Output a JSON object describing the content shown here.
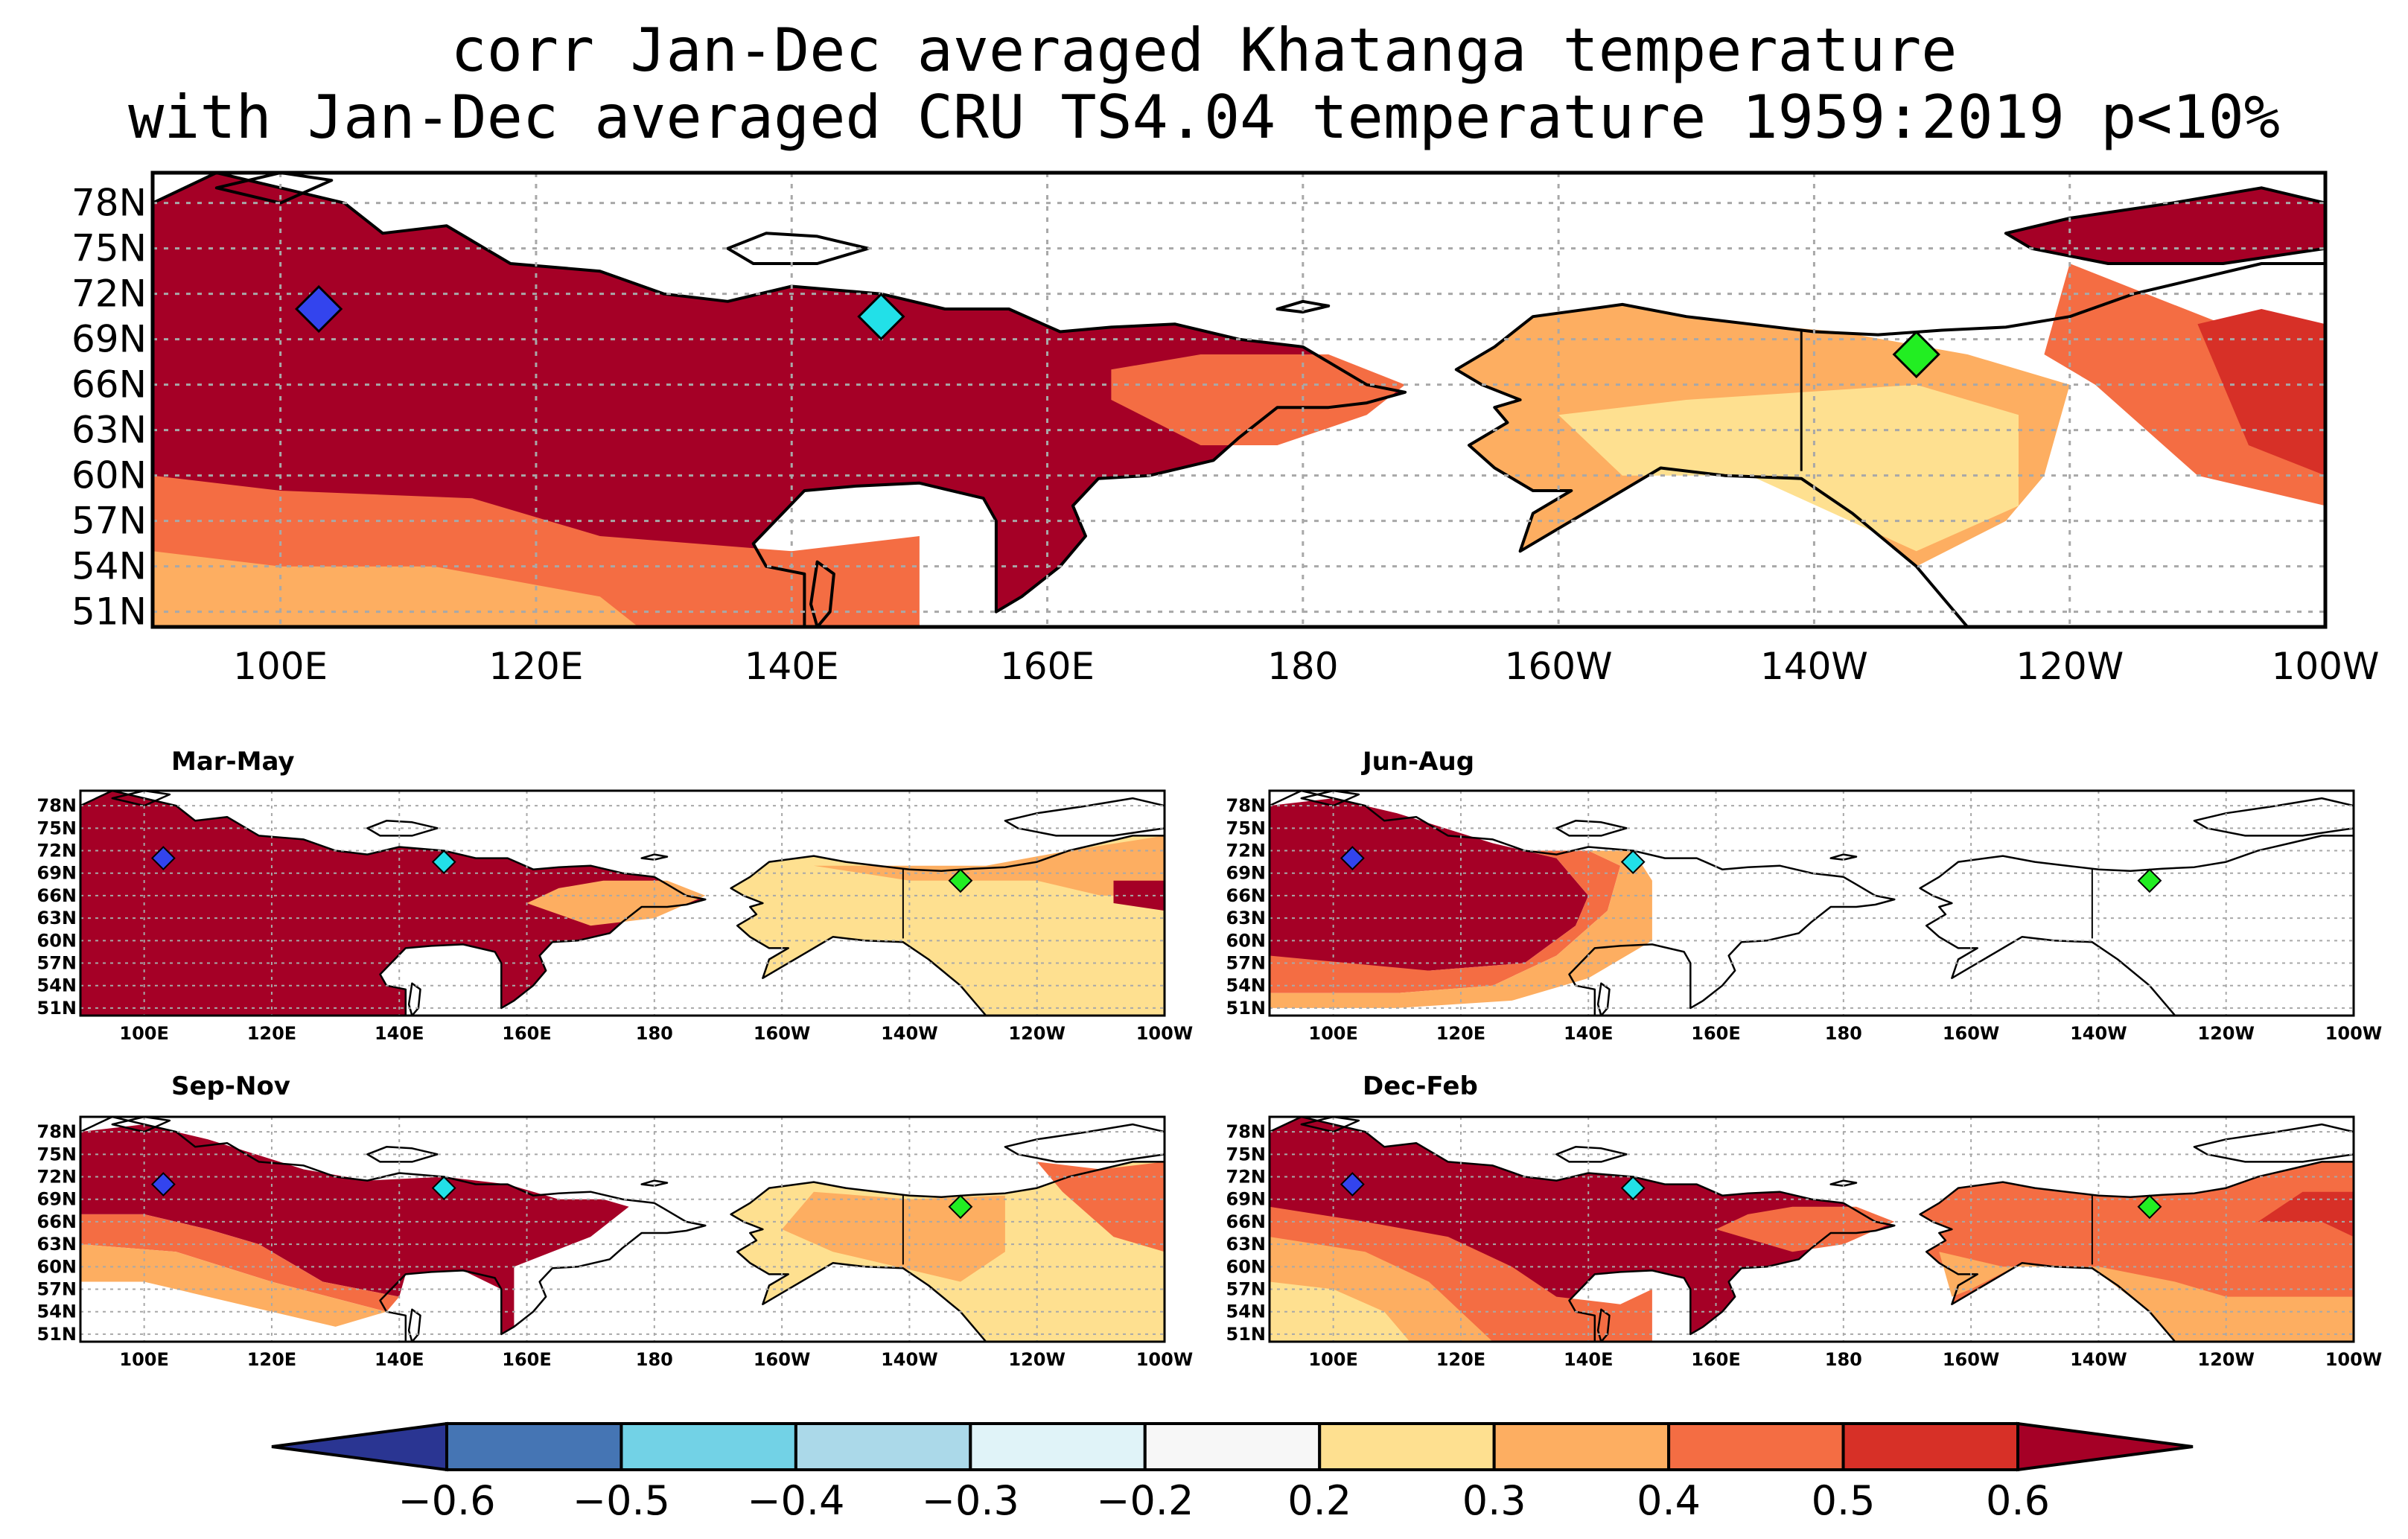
{
  "title": {
    "line1": "corr Jan-Dec averaged Khatanga temperature",
    "line2": "with Jan-Dec averaged CRU TS4.04 temperature 1959:2019 p<10%"
  },
  "axes": {
    "lat_labels": [
      "78N",
      "75N",
      "72N",
      "69N",
      "66N",
      "63N",
      "60N",
      "57N",
      "54N",
      "51N"
    ],
    "lon_labels": [
      "100E",
      "120E",
      "140E",
      "160E",
      "180",
      "160W",
      "140W",
      "120W",
      "100W"
    ]
  },
  "panels": {
    "main": {
      "name": "Jan-Dec"
    },
    "mam": {
      "title": "Mar-May"
    },
    "jja": {
      "title": "Jun-Aug"
    },
    "son": {
      "title": "Sep-Nov"
    },
    "djf": {
      "title": "Dec-Feb"
    }
  },
  "colorbar": {
    "labels": [
      "-0.6",
      "-0.5",
      "-0.4",
      "-0.3",
      "-0.2",
      "0.2",
      "0.3",
      "0.4",
      "0.5",
      "0.6"
    ],
    "colors": [
      "#2a3592",
      "#4575b4",
      "#72d2e6",
      "#abd9e9",
      "#e0f3f8",
      "#f7f7f7",
      "#fee090",
      "#fdae61",
      "#f46d43",
      "#d73027",
      "#a50026"
    ]
  },
  "stations": [
    {
      "name": "blue-diamond",
      "color": "#3344ee"
    },
    {
      "name": "cyan-diamond",
      "color": "#22e0e8"
    },
    {
      "name": "green-diamond",
      "color": "#22ee22"
    }
  ]
}
